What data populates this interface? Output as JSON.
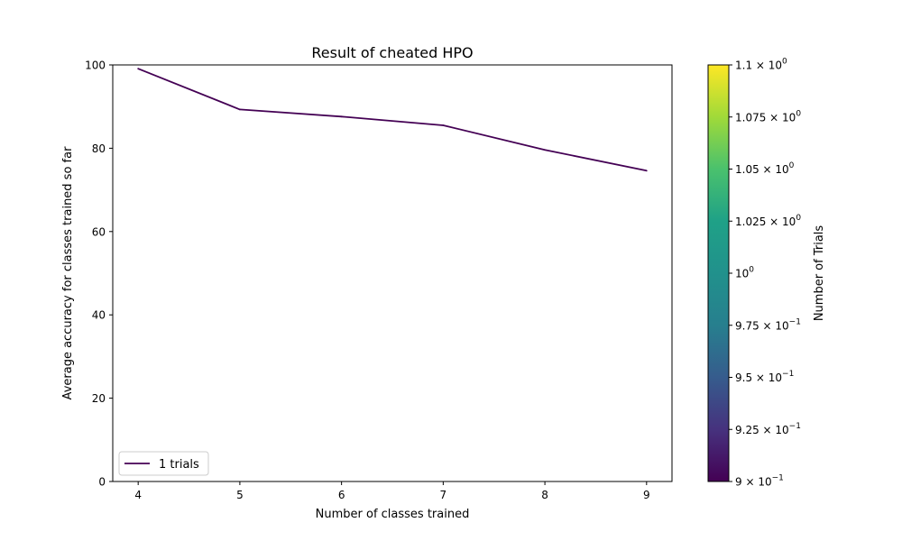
{
  "chart_data": {
    "type": "line",
    "title": "Result of cheated HPO",
    "xlabel": "Number of classes trained",
    "ylabel": "Average accuracy for classes trained so far",
    "xlim": [
      3.75,
      9.25
    ],
    "ylim": [
      0,
      100
    ],
    "x_ticks": [
      4,
      5,
      6,
      7,
      8,
      9
    ],
    "x_tick_labels": [
      "4",
      "5",
      "6",
      "7",
      "8",
      "9"
    ],
    "y_ticks": [
      0,
      20,
      40,
      60,
      80,
      100
    ],
    "y_tick_labels": [
      "0",
      "20",
      "40",
      "60",
      "80",
      "100"
    ],
    "grid": false,
    "series": [
      {
        "name": "1 trials",
        "color": "#440154",
        "x": [
          4,
          5,
          6,
          7,
          8,
          9
        ],
        "y": [
          99.1,
          89.3,
          87.6,
          85.5,
          79.6,
          74.6
        ]
      }
    ],
    "legend": {
      "placement": "lower-left",
      "entries": [
        "1 trials"
      ]
    },
    "colorbar": {
      "label": "Number of Trials",
      "colormap": "viridis",
      "range": [
        0.9,
        1.1
      ],
      "ticks": [
        {
          "value": 0.9,
          "mantissa": "9",
          "exponent": "−1"
        },
        {
          "value": 0.925,
          "mantissa": "9.25",
          "exponent": "−1"
        },
        {
          "value": 0.95,
          "mantissa": "9.5",
          "exponent": "−1"
        },
        {
          "value": 0.975,
          "mantissa": "9.75",
          "exponent": "−1"
        },
        {
          "value": 1.0,
          "mantissa": "",
          "exponent": "0"
        },
        {
          "value": 1.025,
          "mantissa": "1.025",
          "exponent": "0"
        },
        {
          "value": 1.05,
          "mantissa": "1.05",
          "exponent": "0"
        },
        {
          "value": 1.075,
          "mantissa": "1.075",
          "exponent": "0"
        },
        {
          "value": 1.1,
          "mantissa": "1.1",
          "exponent": "0"
        }
      ]
    }
  }
}
